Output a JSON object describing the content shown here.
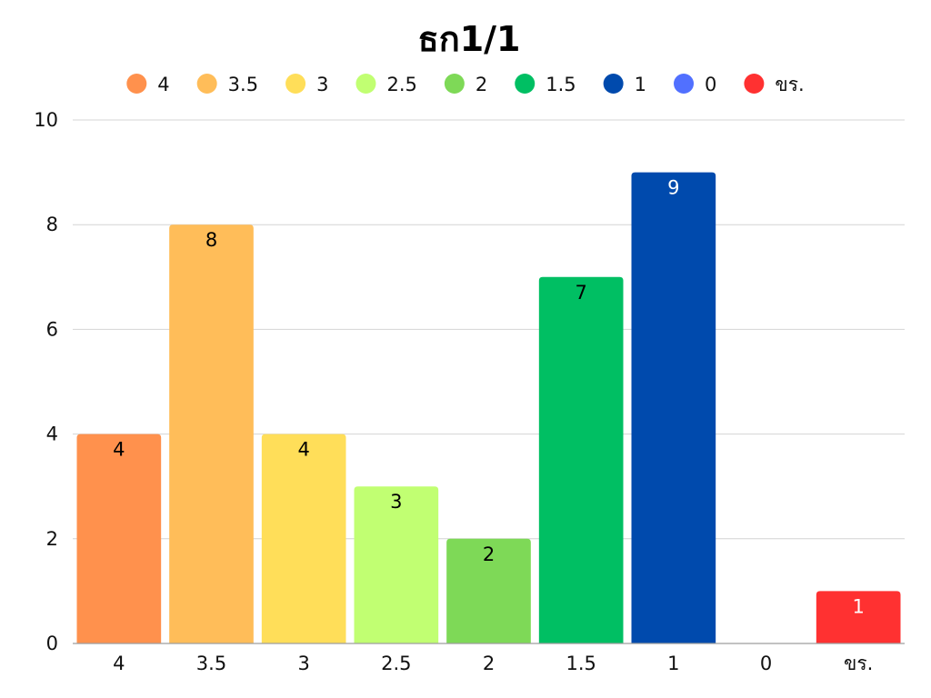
{
  "chart_data": {
    "type": "bar",
    "title": "ธก1/1",
    "xlabel": "",
    "ylabel": "",
    "ylim": [
      0,
      10
    ],
    "yticks": [
      0,
      2,
      4,
      6,
      8,
      10
    ],
    "grid": true,
    "legend_position": "top",
    "categories": [
      "4",
      "3.5",
      "3",
      "2.5",
      "2",
      "1.5",
      "1",
      "0",
      "ขร."
    ],
    "values": [
      4,
      8,
      4,
      3,
      2,
      7,
      9,
      0,
      1
    ],
    "colors": [
      "#ff914d",
      "#ffbd59",
      "#ffde59",
      "#c1ff72",
      "#7ed957",
      "#00bf63",
      "#004aad",
      "#5170ff",
      "#ff3131"
    ],
    "label_colors": [
      "#000000",
      "#000000",
      "#000000",
      "#000000",
      "#000000",
      "#000000",
      "#ffffff",
      "#ffffff",
      "#ffffff"
    ]
  }
}
